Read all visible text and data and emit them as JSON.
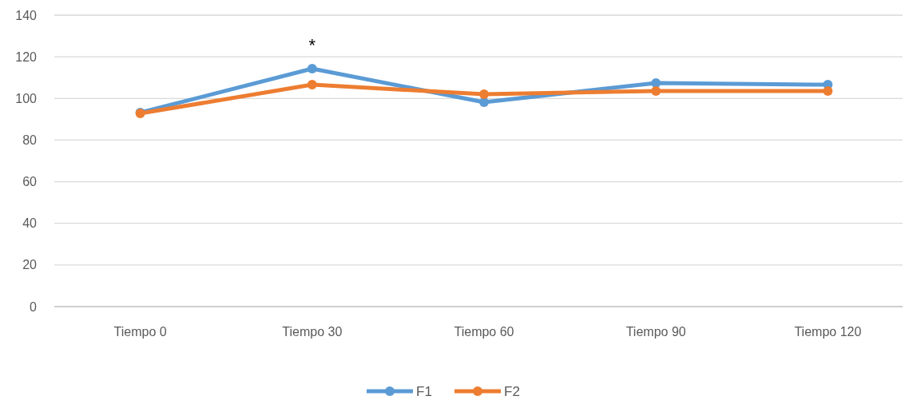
{
  "chart_data": {
    "type": "line",
    "categories": [
      "Tiempo 0",
      "Tiempo 30",
      "Tiempo 60",
      "Tiempo 90",
      "Tiempo 120"
    ],
    "series": [
      {
        "name": "F1",
        "color": "#5b9bd5",
        "values": [
          93.2,
          114.3,
          98.2,
          107.4,
          106.6
        ]
      },
      {
        "name": "F2",
        "color": "#ed7d31",
        "values": [
          92.8,
          106.6,
          102,
          103.6,
          103.6
        ]
      }
    ],
    "ylim": [
      0,
      140
    ],
    "yticks": [
      0,
      20,
      40,
      60,
      80,
      100,
      120,
      140
    ],
    "grid": "y",
    "legend": "bottom",
    "marker": "circle",
    "line_style": "solid",
    "annotations": [
      {
        "text": "*",
        "x": "Tiempo 30",
        "y": 114.3
      }
    ]
  }
}
